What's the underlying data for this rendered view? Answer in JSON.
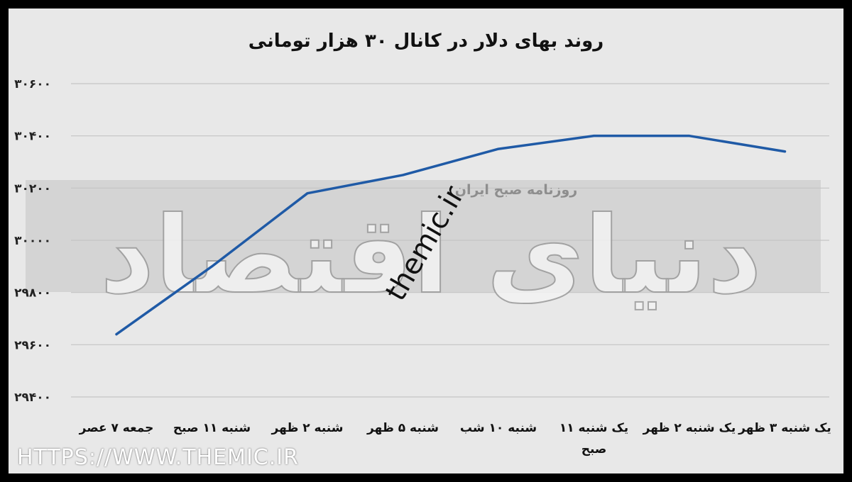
{
  "chart_data": {
    "type": "line",
    "title": "روند بهای دلار در کانال ۳۰ هزار تومانی",
    "categories": [
      "جمعه ۷ عصر",
      "شنبه ۱۱ صبح",
      "شنبه ۲ ظهر",
      "شنبه ۵ ظهر",
      "شنبه ۱۰ شب",
      "یک شنبه ۱۱ صبح",
      "یک شنبه ۲ ظهر",
      "یک شنبه ۳ ظهر"
    ],
    "x_tick_lines": [
      [
        "جمعه ۷ عصر"
      ],
      [
        "شنبه ۱۱ صبح"
      ],
      [
        "شنبه ۲ ظهر"
      ],
      [
        "شنبه ۵ ظهر"
      ],
      [
        "شنبه ۱۰ شب"
      ],
      [
        "یک شنبه ۱۱",
        "صبح"
      ],
      [
        "یک شنبه ۲ ظهر"
      ],
      [
        "یک شنبه ۳ ظهر"
      ]
    ],
    "series": [
      {
        "values": [
          29640,
          29900,
          30180,
          30250,
          30350,
          30400,
          30400,
          30340
        ],
        "color": "#1f5aa6"
      }
    ],
    "ylim": [
      29400,
      30600
    ],
    "yticks": [
      29400,
      29600,
      29800,
      30000,
      30200,
      30400,
      30600
    ],
    "ytick_labels": [
      "۲۹۴۰۰",
      "۲۹۶۰۰",
      "۲۹۸۰۰",
      "۳۰۰۰۰",
      "۳۰۲۰۰",
      "۳۰۴۰۰",
      "۳۰۶۰۰"
    ],
    "grid": true,
    "xlabel": "",
    "ylabel": ""
  },
  "watermarks": {
    "site": "themic.ir",
    "newspaper": "روزنامه صبح ایران",
    "brand": "دنیای اقتصاد"
  },
  "footer": {
    "url": "HTTPS://WWW.THEMIC.IR"
  },
  "colors": {
    "background": "#e8e8e8",
    "grid": "#c4c4c4",
    "line": "#1f5aa6",
    "watermark_band": "#d4d4d4"
  }
}
